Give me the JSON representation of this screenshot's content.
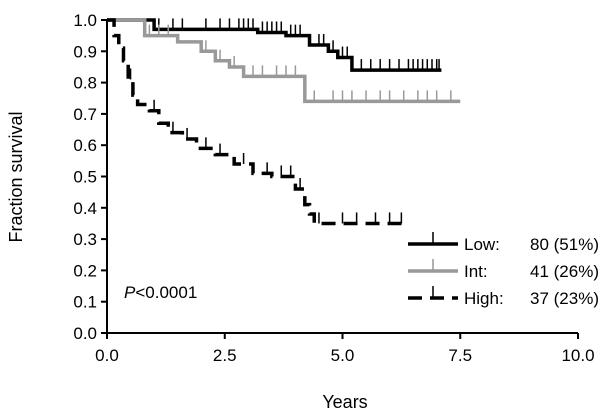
{
  "chart_data": {
    "type": "line",
    "subtype": "kaplan-meier",
    "xlabel": "Years",
    "ylabel": "Fraction survival",
    "xlim": [
      0,
      10
    ],
    "ylim": [
      0,
      1
    ],
    "xticks": [
      "0.0",
      "2.5",
      "5.0",
      "7.5",
      "10.0"
    ],
    "yticks": [
      "0.0",
      "0.1",
      "0.2",
      "0.3",
      "0.4",
      "0.5",
      "0.6",
      "0.7",
      "0.8",
      "0.9",
      "1.0"
    ],
    "grid": false,
    "legend_position": "bottom-right",
    "annotation": {
      "italic": "P",
      "rest": "<0.0001"
    },
    "series": [
      {
        "name": "Low:",
        "legend_count": "80 (51%)",
        "color": "#000000",
        "style": "solid",
        "steps": [
          [
            0,
            1.0
          ],
          [
            1.0,
            0.97
          ],
          [
            3.2,
            0.96
          ],
          [
            3.8,
            0.95
          ],
          [
            4.3,
            0.92
          ],
          [
            4.7,
            0.9
          ],
          [
            4.9,
            0.88
          ],
          [
            5.2,
            0.84
          ],
          [
            7.1,
            0.84
          ]
        ],
        "censor_x": [
          1.1,
          1.4,
          1.6,
          2.1,
          2.4,
          2.6,
          2.8,
          2.9,
          3.0,
          3.1,
          3.3,
          3.4,
          3.5,
          3.6,
          3.7,
          3.9,
          4.0,
          4.1,
          4.5,
          4.6,
          4.8,
          5.0,
          5.1,
          5.4,
          5.6,
          5.8,
          6.0,
          6.2,
          6.4,
          6.5,
          6.6,
          6.7,
          6.8,
          6.9,
          7.0,
          7.05
        ]
      },
      {
        "name": "Int:",
        "legend_count": "41 (26%)",
        "color": "#999999",
        "style": "solid",
        "steps": [
          [
            0,
            1.0
          ],
          [
            0.8,
            0.95
          ],
          [
            1.5,
            0.93
          ],
          [
            2.0,
            0.9
          ],
          [
            2.3,
            0.87
          ],
          [
            2.6,
            0.85
          ],
          [
            2.9,
            0.82
          ],
          [
            4.2,
            0.74
          ],
          [
            7.5,
            0.74
          ]
        ],
        "censor_x": [
          0.9,
          1.1,
          1.3,
          2.1,
          2.4,
          2.7,
          3.1,
          3.3,
          3.6,
          3.8,
          4.0,
          4.4,
          4.8,
          5.0,
          5.2,
          5.5,
          5.8,
          6.0,
          6.3,
          6.6,
          6.8,
          7.0,
          7.3
        ]
      },
      {
        "name": "High:",
        "legend_count": "37 (23%)",
        "color": "#000000",
        "style": "dashed",
        "steps": [
          [
            0,
            1.0
          ],
          [
            0.15,
            0.95
          ],
          [
            0.25,
            0.91
          ],
          [
            0.35,
            0.87
          ],
          [
            0.45,
            0.81
          ],
          [
            0.55,
            0.76
          ],
          [
            0.65,
            0.73
          ],
          [
            0.9,
            0.71
          ],
          [
            1.1,
            0.67
          ],
          [
            1.3,
            0.64
          ],
          [
            1.6,
            0.62
          ],
          [
            1.9,
            0.59
          ],
          [
            2.3,
            0.57
          ],
          [
            2.7,
            0.54
          ],
          [
            3.1,
            0.51
          ],
          [
            3.5,
            0.5
          ],
          [
            4.0,
            0.46
          ],
          [
            4.2,
            0.41
          ],
          [
            4.3,
            0.38
          ],
          [
            4.4,
            0.35
          ],
          [
            6.3,
            0.35
          ]
        ],
        "censor_x": [
          0.5,
          1.0,
          1.4,
          1.7,
          2.1,
          2.4,
          2.9,
          3.4,
          3.7,
          3.9,
          4.1,
          4.5,
          5.0,
          5.3,
          5.7,
          6.0,
          6.25
        ]
      }
    ]
  }
}
